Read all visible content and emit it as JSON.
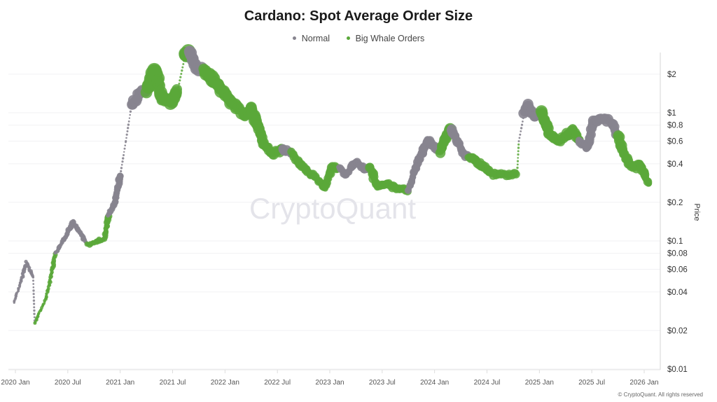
{
  "chart_data": {
    "type": "scatter",
    "title": "Cardano: Spot Average Order Size",
    "ylabel": "Price",
    "xlabel": "",
    "y_scale": "log",
    "ylim": [
      0.01,
      3
    ],
    "xlim": [
      "2019-12-25",
      "2026-02-01"
    ],
    "grid": true,
    "legend_position": "top-center",
    "watermark": "CryptoQuant",
    "copyright": "© CryptoQuant. All rights reserved",
    "colors": {
      "normal": "#87848f",
      "whale": "#5aa83a"
    },
    "legend": [
      {
        "key": "normal",
        "label": "Normal"
      },
      {
        "key": "whale",
        "label": "Big Whale Orders"
      }
    ],
    "x_ticks": [
      "2020 Jan",
      "2020 Jul",
      "2021 Jan",
      "2021 Jul",
      "2022 Jan",
      "2022 Jul",
      "2023 Jan",
      "2023 Jul",
      "2024 Jan",
      "2024 Jul",
      "2025 Jan",
      "2025 Jul",
      "2026 Jan"
    ],
    "y_ticks": [
      {
        "value": 2,
        "label": "$2"
      },
      {
        "value": 1,
        "label": "$1"
      },
      {
        "value": 0.8,
        "label": "$0.8"
      },
      {
        "value": 0.6,
        "label": "$0.6"
      },
      {
        "value": 0.4,
        "label": "$0.4"
      },
      {
        "value": 0.2,
        "label": "$0.2"
      },
      {
        "value": 0.1,
        "label": "$0.1"
      },
      {
        "value": 0.08,
        "label": "$0.08"
      },
      {
        "value": 0.06,
        "label": "$0.06"
      },
      {
        "value": 0.04,
        "label": "$0.04"
      },
      {
        "value": 0.02,
        "label": "$0.02"
      },
      {
        "value": 0.01,
        "label": "$0.01"
      }
    ],
    "points": [
      [
        "2019-12-28",
        0.033,
        "normal"
      ],
      [
        "2020-02-09",
        0.068,
        "normal"
      ],
      [
        "2020-03-03",
        0.052,
        "normal"
      ],
      [
        "2020-03-08",
        0.023,
        "whale"
      ],
      [
        "2020-04-14",
        0.034,
        "whale"
      ],
      [
        "2020-05-01",
        0.049,
        "whale"
      ],
      [
        "2020-05-20",
        0.08,
        "normal"
      ],
      [
        "2020-06-26",
        0.11,
        "normal"
      ],
      [
        "2020-07-20",
        0.14,
        "normal"
      ],
      [
        "2020-08-21",
        0.11,
        "normal"
      ],
      [
        "2020-09-08",
        0.093,
        "whale"
      ],
      [
        "2020-10-14",
        0.1,
        "whale"
      ],
      [
        "2020-11-08",
        0.105,
        "whale"
      ],
      [
        "2020-11-20",
        0.16,
        "normal"
      ],
      [
        "2020-12-14",
        0.2,
        "normal"
      ],
      [
        "2021-01-01",
        0.33,
        "normal"
      ],
      [
        "2021-01-20",
        0.6,
        "normal"
      ],
      [
        "2021-02-09",
        1.15,
        "normal"
      ],
      [
        "2021-03-08",
        1.4,
        "normal"
      ],
      [
        "2021-04-02",
        1.5,
        "whale"
      ],
      [
        "2021-05-01",
        2.15,
        "whale"
      ],
      [
        "2021-05-25",
        1.3,
        "whale"
      ],
      [
        "2021-06-26",
        1.2,
        "whale"
      ],
      [
        "2021-07-20",
        1.5,
        "whale"
      ],
      [
        "2021-08-14",
        2.75,
        "whale"
      ],
      [
        "2021-09-01",
        2.95,
        "normal"
      ],
      [
        "2021-09-20",
        2.3,
        "normal"
      ],
      [
        "2021-10-19",
        2.15,
        "whale"
      ],
      [
        "2021-11-20",
        1.8,
        "whale"
      ],
      [
        "2021-12-26",
        1.45,
        "whale"
      ],
      [
        "2022-02-02",
        1.15,
        "whale"
      ],
      [
        "2022-03-08",
        0.95,
        "whale"
      ],
      [
        "2022-04-02",
        1.08,
        "whale"
      ],
      [
        "2022-04-26",
        0.78,
        "whale"
      ],
      [
        "2022-05-16",
        0.57,
        "whale"
      ],
      [
        "2022-06-15",
        0.48,
        "whale"
      ],
      [
        "2022-07-21",
        0.52,
        "normal"
      ],
      [
        "2022-08-22",
        0.48,
        "whale"
      ],
      [
        "2022-09-21",
        0.39,
        "whale"
      ],
      [
        "2022-10-27",
        0.33,
        "whale"
      ],
      [
        "2022-11-21",
        0.3,
        "whale"
      ],
      [
        "2022-12-15",
        0.26,
        "whale"
      ],
      [
        "2023-01-09",
        0.37,
        "whale"
      ],
      [
        "2023-02-03",
        0.37,
        "normal"
      ],
      [
        "2023-02-27",
        0.33,
        "normal"
      ],
      [
        "2023-04-03",
        0.42,
        "normal"
      ],
      [
        "2023-04-27",
        0.37,
        "normal"
      ],
      [
        "2023-05-21",
        0.37,
        "whale"
      ],
      [
        "2023-06-15",
        0.27,
        "whale"
      ],
      [
        "2023-07-21",
        0.28,
        "whale"
      ],
      [
        "2023-08-15",
        0.26,
        "whale"
      ],
      [
        "2023-09-17",
        0.25,
        "whale"
      ],
      [
        "2023-10-03",
        0.25,
        "normal"
      ],
      [
        "2023-10-27",
        0.37,
        "normal"
      ],
      [
        "2023-11-21",
        0.5,
        "normal"
      ],
      [
        "2023-12-08",
        0.61,
        "normal"
      ],
      [
        "2024-01-02",
        0.54,
        "normal"
      ],
      [
        "2024-01-21",
        0.5,
        "whale"
      ],
      [
        "2024-02-15",
        0.69,
        "whale"
      ],
      [
        "2024-02-27",
        0.74,
        "normal"
      ],
      [
        "2024-03-21",
        0.61,
        "normal"
      ],
      [
        "2024-04-08",
        0.48,
        "normal"
      ],
      [
        "2024-04-28",
        0.45,
        "whale"
      ],
      [
        "2024-06-15",
        0.39,
        "whale"
      ],
      [
        "2024-07-21",
        0.33,
        "whale"
      ],
      [
        "2024-08-27",
        0.33,
        "whale"
      ],
      [
        "2024-10-15",
        0.33,
        "whale"
      ],
      [
        "2024-10-21",
        0.6,
        "normal"
      ],
      [
        "2024-11-09",
        1.0,
        "normal"
      ],
      [
        "2024-11-21",
        1.15,
        "normal"
      ],
      [
        "2024-12-15",
        0.95,
        "normal"
      ],
      [
        "2025-01-09",
        1.0,
        "whale"
      ],
      [
        "2025-02-03",
        0.69,
        "whale"
      ],
      [
        "2025-03-09",
        0.6,
        "whale"
      ],
      [
        "2025-04-03",
        0.65,
        "whale"
      ],
      [
        "2025-04-27",
        0.74,
        "whale"
      ],
      [
        "2025-05-21",
        0.6,
        "normal"
      ],
      [
        "2025-06-15",
        0.54,
        "normal"
      ],
      [
        "2025-07-09",
        0.84,
        "normal"
      ],
      [
        "2025-08-03",
        0.92,
        "normal"
      ],
      [
        "2025-09-09",
        0.84,
        "normal"
      ],
      [
        "2025-10-03",
        0.65,
        "whale"
      ],
      [
        "2025-10-27",
        0.45,
        "whale"
      ],
      [
        "2025-11-22",
        0.37,
        "whale"
      ],
      [
        "2025-12-17",
        0.39,
        "whale"
      ],
      [
        "2026-01-18",
        0.28,
        "whale"
      ]
    ]
  }
}
